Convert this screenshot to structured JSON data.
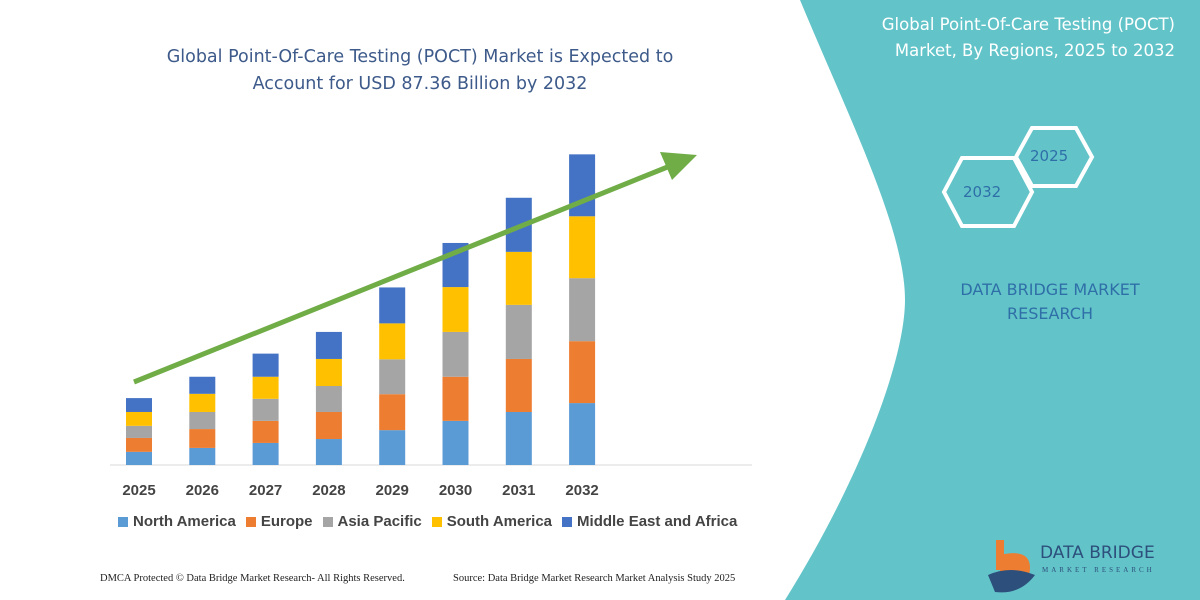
{
  "header": {
    "title": "Global Point-Of-Care Testing (POCT) Market is Expected to Account for USD 87.36 Billion by 2032"
  },
  "side_panel": {
    "title": "Global Point-Of-Care Testing (POCT) Market, By Regions, 2025 to 2032",
    "hex_start": "2025",
    "hex_end": "2032",
    "brand": "DATA BRIDGE MARKET RESEARCH",
    "logo_text": "DATA BRIDGE",
    "logo_sub": "MARKET RESEARCH",
    "color": "#62c4c9"
  },
  "footer": {
    "left": "DMCA Protected © Data Bridge Market Research-  All Rights Reserved.",
    "right": "Source: Data Bridge Market Research  Market Analysis Study 2025"
  },
  "chart_data": {
    "type": "bar",
    "stacked": true,
    "title": "Global Point-Of-Care Testing (POCT) Market is Expected to Account for USD 87.36 Billion by 2032",
    "categories": [
      "2025",
      "2026",
      "2027",
      "2028",
      "2029",
      "2030",
      "2031",
      "2032"
    ],
    "series": [
      {
        "name": "North America",
        "color": "#5b9bd5",
        "values": [
          3.7,
          4.8,
          6.2,
          7.3,
          9.8,
          12.4,
          14.9,
          17.4
        ]
      },
      {
        "name": "Europe",
        "color": "#ed7d31",
        "values": [
          3.9,
          5.3,
          6.2,
          7.6,
          10.1,
          12.4,
          14.9,
          17.4
        ]
      },
      {
        "name": "Asia Pacific",
        "color": "#a5a5a5",
        "values": [
          3.4,
          4.8,
          6.2,
          7.3,
          9.8,
          12.6,
          15.2,
          17.7
        ]
      },
      {
        "name": "South America",
        "color": "#ffc000",
        "values": [
          3.9,
          5.1,
          6.2,
          7.6,
          10.1,
          12.6,
          14.9,
          17.4
        ]
      },
      {
        "name": "Middle East and Africa",
        "color": "#4472c4",
        "values": [
          3.9,
          4.8,
          6.5,
          7.6,
          10.1,
          12.4,
          15.2,
          17.4
        ]
      }
    ],
    "trend_arrow_color": "#70ad47",
    "legend": "bottom",
    "grid": false
  }
}
